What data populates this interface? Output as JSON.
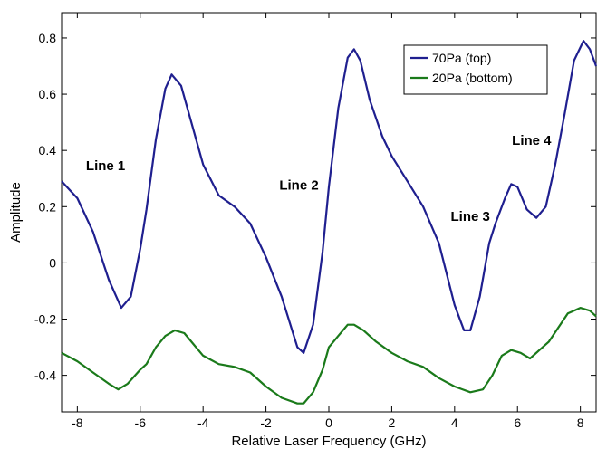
{
  "chart_data": {
    "type": "line",
    "title": "",
    "xlabel": "Relative Laser Frequency (GHz)",
    "ylabel": "Amplitude",
    "xlim": [
      -8.5,
      8.5
    ],
    "ylim": [
      -0.53,
      0.89
    ],
    "xticks": [
      -8,
      -6,
      -4,
      -2,
      0,
      2,
      4,
      6,
      8
    ],
    "yticks": [
      -0.4,
      -0.2,
      0,
      0.2,
      0.4,
      0.6,
      0.8
    ],
    "xtick_labels": [
      "-8",
      "-6",
      "-4",
      "-2",
      "0",
      "2",
      "4",
      "6",
      "8"
    ],
    "ytick_labels": [
      "-0.4",
      "-0.2",
      "0",
      "0.2",
      "0.4",
      "0.6",
      "0.8"
    ],
    "grid": false,
    "legend_position": "top-right",
    "series": [
      {
        "name": "70Pa (top)",
        "color": "#1f1f8f",
        "x": [
          -8.5,
          -8.0,
          -7.5,
          -7.0,
          -6.6,
          -6.3,
          -6.0,
          -5.8,
          -5.5,
          -5.2,
          -5.0,
          -4.7,
          -4.3,
          -4.0,
          -3.5,
          -3.0,
          -2.5,
          -2.0,
          -1.5,
          -1.0,
          -0.8,
          -0.5,
          -0.2,
          0.0,
          0.3,
          0.6,
          0.8,
          1.0,
          1.3,
          1.7,
          2.0,
          2.5,
          3.0,
          3.5,
          4.0,
          4.3,
          4.5,
          4.8,
          5.1,
          5.3,
          5.6,
          5.8,
          6.0,
          6.3,
          6.6,
          6.9,
          7.2,
          7.5,
          7.8,
          8.1,
          8.3,
          8.5
        ],
        "y": [
          0.29,
          0.23,
          0.11,
          -0.06,
          -0.16,
          -0.12,
          0.05,
          0.19,
          0.44,
          0.62,
          0.67,
          0.63,
          0.47,
          0.35,
          0.24,
          0.2,
          0.14,
          0.02,
          -0.12,
          -0.3,
          -0.32,
          -0.22,
          0.04,
          0.27,
          0.55,
          0.73,
          0.76,
          0.72,
          0.58,
          0.45,
          0.38,
          0.29,
          0.2,
          0.07,
          -0.15,
          -0.24,
          -0.24,
          -0.12,
          0.07,
          0.14,
          0.23,
          0.28,
          0.27,
          0.19,
          0.16,
          0.2,
          0.35,
          0.53,
          0.72,
          0.79,
          0.76,
          0.7
        ]
      },
      {
        "name": "20Pa (bottom)",
        "color": "#1a7a1a",
        "x": [
          -8.5,
          -8.0,
          -7.5,
          -7.0,
          -6.7,
          -6.4,
          -6.0,
          -5.8,
          -5.5,
          -5.2,
          -4.9,
          -4.6,
          -4.3,
          -4.0,
          -3.5,
          -3.0,
          -2.5,
          -2.0,
          -1.5,
          -1.0,
          -0.8,
          -0.5,
          -0.2,
          0.0,
          0.3,
          0.6,
          0.8,
          1.1,
          1.5,
          2.0,
          2.5,
          3.0,
          3.5,
          4.0,
          4.5,
          4.9,
          5.2,
          5.5,
          5.8,
          6.1,
          6.4,
          6.7,
          7.0,
          7.3,
          7.6,
          8.0,
          8.3,
          8.5
        ],
        "y": [
          -0.32,
          -0.35,
          -0.39,
          -0.43,
          -0.45,
          -0.43,
          -0.38,
          -0.36,
          -0.3,
          -0.26,
          -0.24,
          -0.25,
          -0.29,
          -0.33,
          -0.36,
          -0.37,
          -0.39,
          -0.44,
          -0.48,
          -0.5,
          -0.5,
          -0.46,
          -0.38,
          -0.3,
          -0.26,
          -0.22,
          -0.22,
          -0.24,
          -0.28,
          -0.32,
          -0.35,
          -0.37,
          -0.41,
          -0.44,
          -0.46,
          -0.45,
          -0.4,
          -0.33,
          -0.31,
          -0.32,
          -0.34,
          -0.31,
          -0.28,
          -0.23,
          -0.18,
          -0.16,
          -0.17,
          -0.19
        ]
      }
    ],
    "annotations": [
      {
        "text": "Line 1",
        "x": -7.1,
        "y": 0.33
      },
      {
        "text": "Line 2",
        "x": -0.95,
        "y": 0.26
      },
      {
        "text": "Line 3",
        "x": 4.5,
        "y": 0.15
      },
      {
        "text": "Line 4",
        "x": 6.45,
        "y": 0.42
      }
    ]
  }
}
